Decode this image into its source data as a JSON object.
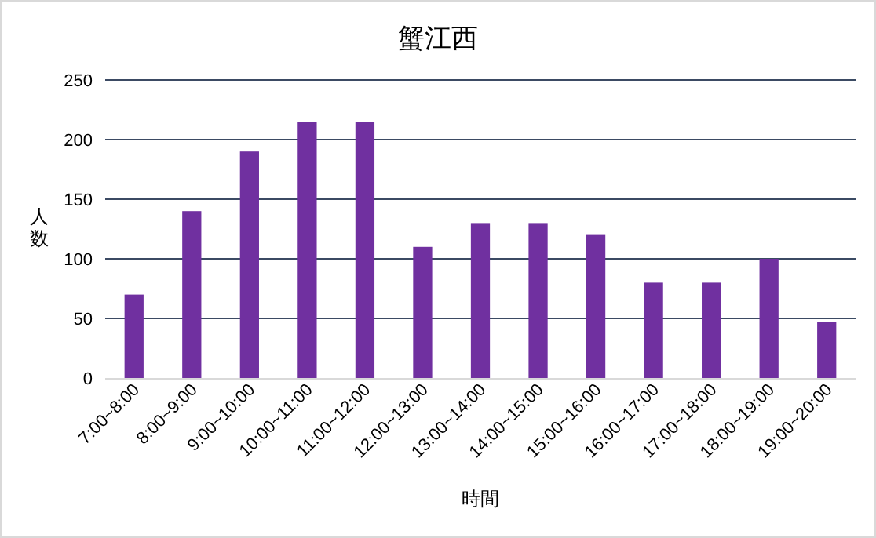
{
  "chart_data": {
    "type": "bar",
    "title": "蟹江西",
    "xlabel": "時間",
    "ylabel": "人数",
    "categories": [
      "7:00~8:00",
      "8:00~9:00",
      "9:00~10:00",
      "10:00~11:00",
      "11:00~12:00",
      "12:00~13:00",
      "13:00~14:00",
      "14:00~15:00",
      "15:00~16:00",
      "16:00~17:00",
      "17:00~18:00",
      "18:00~19:00",
      "19:00~20:00"
    ],
    "values": [
      70,
      140,
      190,
      215,
      215,
      110,
      130,
      130,
      120,
      80,
      80,
      100,
      47
    ],
    "color": "#7030a0",
    "ylim": [
      0,
      250
    ],
    "yticks": [
      0,
      50,
      100,
      150,
      200,
      250
    ],
    "grid": "y"
  }
}
